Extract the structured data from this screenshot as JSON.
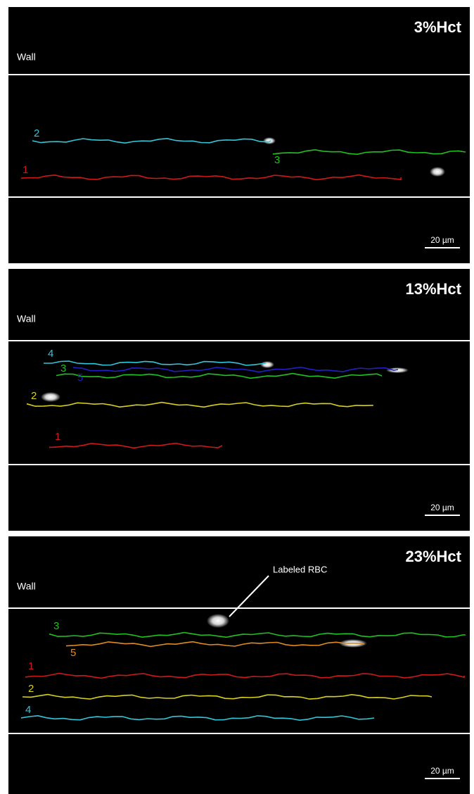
{
  "panels": [
    {
      "title": "3%Hct",
      "wall_label": "Wall",
      "scale_bar_label": "20 µm",
      "traces": [
        {
          "label": "2",
          "color": "#33c6d8"
        },
        {
          "label": "3",
          "color": "#1fc21f"
        },
        {
          "label": "1",
          "color": "#d01818"
        }
      ]
    },
    {
      "title": "13%Hct",
      "wall_label": "Wall",
      "scale_bar_label": "20 µm",
      "traces": [
        {
          "label": "4",
          "color": "#33c6d8"
        },
        {
          "label": "3",
          "color": "#1fc21f"
        },
        {
          "label": "5",
          "color": "#2020c8"
        },
        {
          "label": "2",
          "color": "#d8d020"
        },
        {
          "label": "1",
          "color": "#d01818"
        }
      ]
    },
    {
      "title": "23%Hct",
      "wall_label": "Wall",
      "scale_bar_label": "20 µm",
      "traces": [
        {
          "label": "3",
          "color": "#1fc21f"
        },
        {
          "label": "5",
          "color": "#e08a20"
        },
        {
          "label": "1",
          "color": "#d01818"
        },
        {
          "label": "2",
          "color": "#d8d020"
        },
        {
          "label": "4",
          "color": "#33c6d8"
        }
      ]
    }
  ],
  "annotation": "Labeled RBC"
}
